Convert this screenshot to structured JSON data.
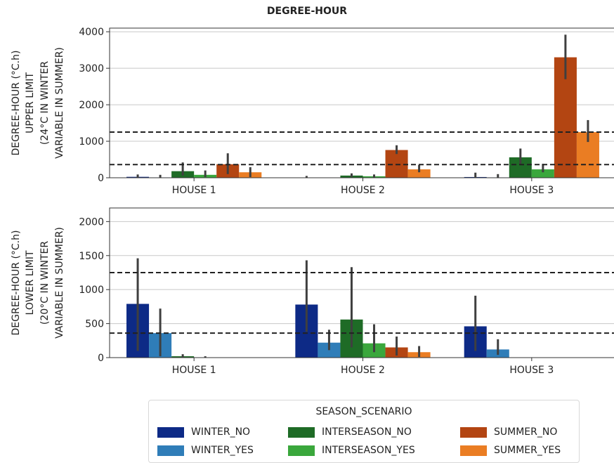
{
  "title": "DEGREE-HOUR",
  "colors": {
    "WINTER_NO": "#0d2a86",
    "WINTER_YES": "#2f7db8",
    "INTERSEASON_NO": "#1e6b26",
    "INTERSEASON_YES": "#3aa73c",
    "SUMMER_NO": "#b34512",
    "SUMMER_YES": "#ea7d23"
  },
  "legend": {
    "title": "SEASON_SCENARIO",
    "items": [
      "WINTER_NO",
      "INTERSEASON_NO",
      "SUMMER_NO",
      "WINTER_YES",
      "INTERSEASON_YES",
      "SUMMER_YES"
    ]
  },
  "chart_data": [
    {
      "type": "bar",
      "title": "DEGREE-HOUR",
      "ylabel_lines": [
        "DEGREE-HOUR (°C.h)",
        "UPPER LIMIT",
        "(24°C IN WINTER",
        "VARIABLE IN SUMMER)"
      ],
      "xlabel": "",
      "ylim": [
        0,
        4100
      ],
      "yticks": [
        0,
        1000,
        2000,
        3000,
        4000
      ],
      "grid": "y",
      "categories": [
        "HOUSE 1",
        "HOUSE 2",
        "HOUSE 3"
      ],
      "reference_lines": [
        1250,
        360
      ],
      "series": [
        {
          "name": "WINTER_NO",
          "values": [
            25,
            0,
            20
          ],
          "err": [
            [
              0,
              90
            ],
            [
              0,
              50
            ],
            [
              0,
              140
            ]
          ]
        },
        {
          "name": "WINTER_YES",
          "values": [
            10,
            0,
            10
          ],
          "err": [
            [
              0,
              80
            ],
            [
              0,
              0
            ],
            [
              0,
              100
            ]
          ]
        },
        {
          "name": "INTERSEASON_NO",
          "values": [
            180,
            60,
            560
          ],
          "err": [
            [
              60,
              420
            ],
            [
              20,
              120
            ],
            [
              380,
              800
            ]
          ]
        },
        {
          "name": "INTERSEASON_YES",
          "values": [
            80,
            40,
            230
          ],
          "err": [
            [
              20,
              200
            ],
            [
              10,
              90
            ],
            [
              150,
              380
            ]
          ]
        },
        {
          "name": "SUMMER_NO",
          "values": [
            370,
            760,
            3300
          ],
          "err": [
            [
              100,
              670
            ],
            [
              650,
              890
            ],
            [
              2700,
              3920
            ]
          ]
        },
        {
          "name": "SUMMER_YES",
          "values": [
            150,
            230,
            1250
          ],
          "err": [
            [
              20,
              290
            ],
            [
              150,
              350
            ],
            [
              980,
              1580
            ]
          ]
        }
      ]
    },
    {
      "type": "bar",
      "title": "",
      "ylabel_lines": [
        "DEGREE-HOUR (°C.h)",
        "LOWER LIMIT",
        "(20°C IN WINTER",
        "VARIABLE IN SUMMER)"
      ],
      "xlabel": "",
      "ylim": [
        0,
        2200
      ],
      "yticks": [
        0,
        500,
        1000,
        1500,
        2000
      ],
      "grid": "y",
      "categories": [
        "HOUSE 1",
        "HOUSE 2",
        "HOUSE 3"
      ],
      "reference_lines": [
        1250,
        360
      ],
      "series": [
        {
          "name": "WINTER_NO",
          "values": [
            790,
            780,
            460
          ],
          "err": [
            [
              100,
              1460
            ],
            [
              380,
              1430
            ],
            [
              100,
              910
            ]
          ]
        },
        {
          "name": "WINTER_YES",
          "values": [
            360,
            220,
            120
          ],
          "err": [
            [
              20,
              720
            ],
            [
              110,
              410
            ],
            [
              40,
              270
            ]
          ]
        },
        {
          "name": "INTERSEASON_NO",
          "values": [
            20,
            560,
            0
          ],
          "err": [
            [
              0,
              50
            ],
            [
              150,
              1330
            ],
            [
              0,
              0
            ]
          ]
        },
        {
          "name": "INTERSEASON_YES",
          "values": [
            5,
            210,
            0
          ],
          "err": [
            [
              0,
              20
            ],
            [
              80,
              490
            ],
            [
              0,
              0
            ]
          ]
        },
        {
          "name": "SUMMER_NO",
          "values": [
            0,
            150,
            0
          ],
          "err": [
            [
              0,
              0
            ],
            [
              30,
              310
            ],
            [
              0,
              0
            ]
          ]
        },
        {
          "name": "SUMMER_YES",
          "values": [
            0,
            80,
            0
          ],
          "err": [
            [
              0,
              0
            ],
            [
              10,
              170
            ],
            [
              0,
              0
            ]
          ]
        }
      ]
    }
  ]
}
